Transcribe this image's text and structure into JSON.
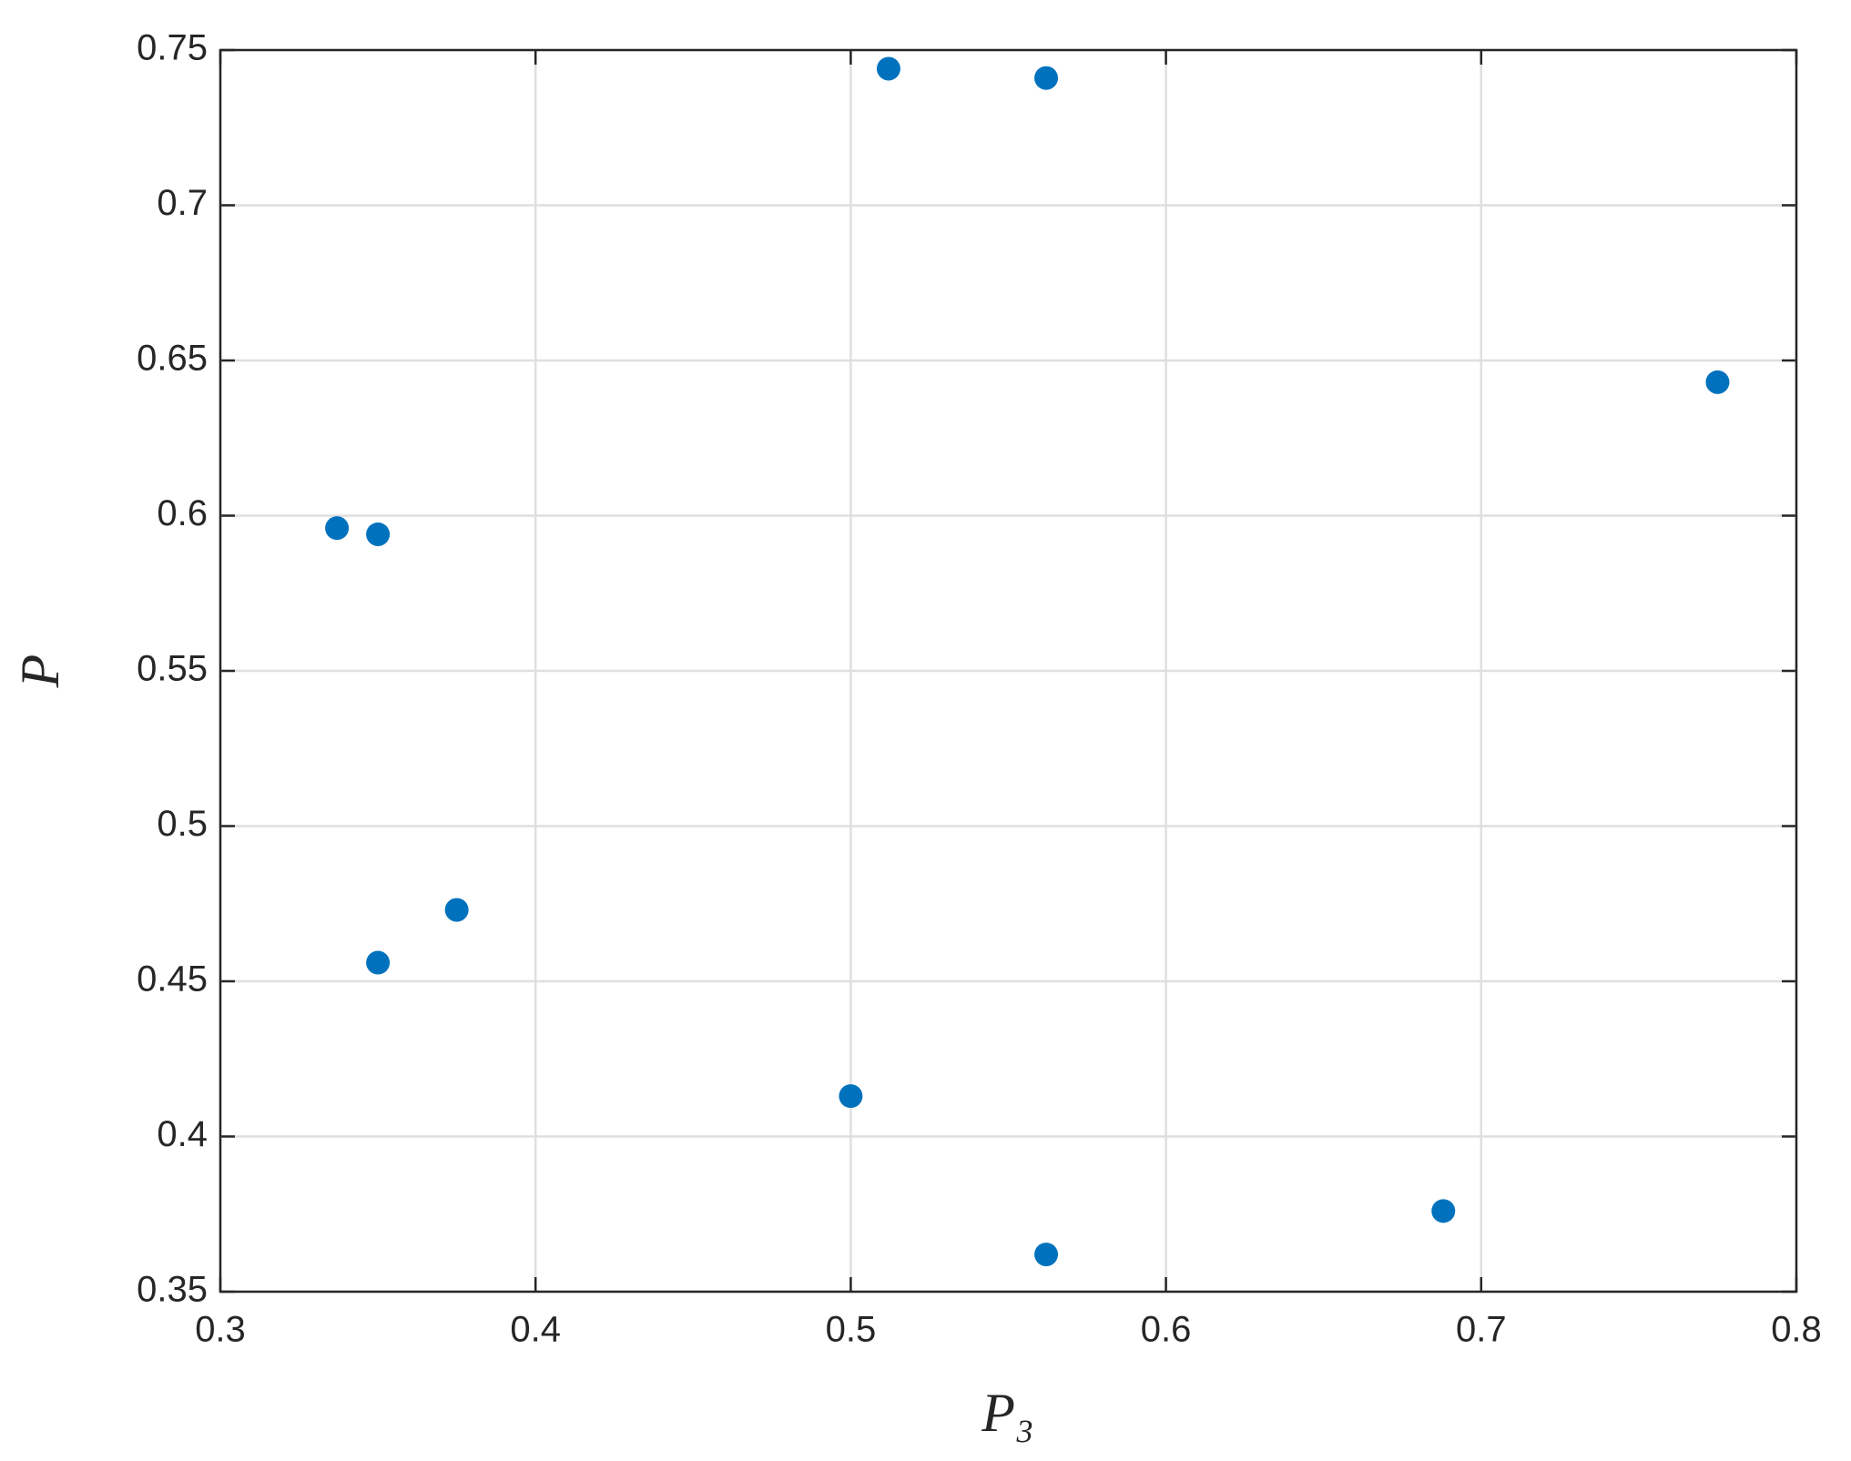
{
  "chart_data": {
    "type": "scatter",
    "x_label": "P₃",
    "y_label": "P",
    "x": [
      0.337,
      0.35,
      0.375,
      0.35,
      0.5,
      0.512,
      0.562,
      0.562,
      0.688,
      0.775
    ],
    "values": [
      0.596,
      0.594,
      0.473,
      0.456,
      0.413,
      0.744,
      0.741,
      0.362,
      0.376,
      0.643
    ],
    "color": "#0072bd",
    "xlim": [
      0.3,
      0.8
    ],
    "xticks": [
      0.3,
      0.4,
      0.5,
      0.6,
      0.7,
      0.8
    ],
    "ylim": [
      0.35,
      0.75
    ],
    "yticks": [
      0.35,
      0.4,
      0.45,
      0.5,
      0.55,
      0.6,
      0.65,
      0.7,
      0.75
    ],
    "grid": true
  }
}
